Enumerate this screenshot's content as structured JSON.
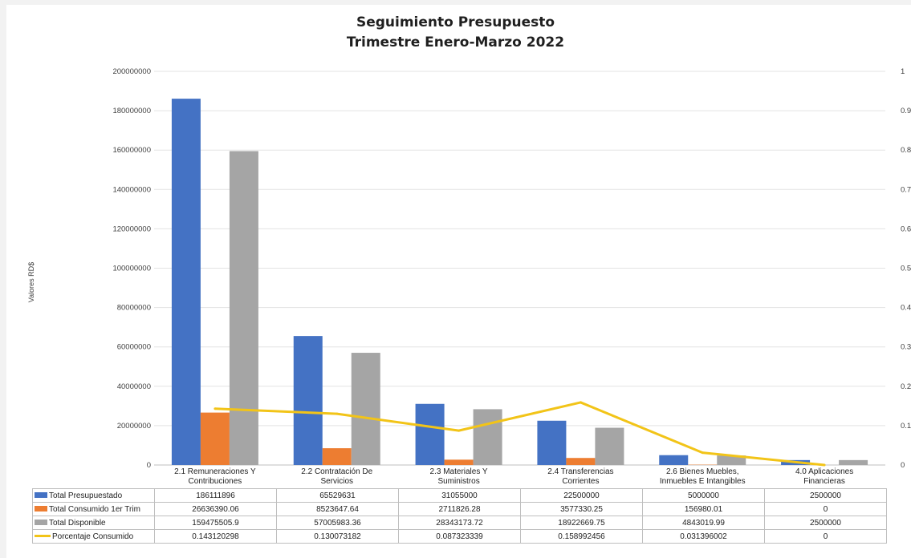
{
  "chart_data": {
    "type": "bar",
    "title": "Seguimiento Presupuesto",
    "subtitle": "Trimestre Enero-Marzo 2022",
    "ylabel": "Valores RD$",
    "ylim": [
      0,
      200000000
    ],
    "y2lim": [
      0,
      1
    ],
    "grid": true,
    "legend_placement": "data-table-left",
    "yticks": [
      "0",
      "20000000",
      "40000000",
      "60000000",
      "80000000",
      "100000000",
      "120000000",
      "140000000",
      "160000000",
      "180000000",
      "200000000"
    ],
    "y2ticks": [
      "0",
      "0.1",
      "0.2",
      "0.3",
      "0.4",
      "0.5",
      "0.6",
      "0.7",
      "0.8",
      "0.9",
      "1"
    ],
    "categories": [
      {
        "line1": "2.1 Remuneraciones Y",
        "line2": "Contribuciones"
      },
      {
        "line1": "2.2 Contratación De",
        "line2": "Servicios"
      },
      {
        "line1": "2.3 Materiales Y",
        "line2": "Suministros"
      },
      {
        "line1": "2.4 Transferencias",
        "line2": "Corrientes"
      },
      {
        "line1": "2.6 Bienes Muebles,",
        "line2": "Inmuebles E Intangibles"
      },
      {
        "line1": "4.0 Aplicaciones",
        "line2": "Financieras"
      }
    ],
    "series": [
      {
        "name": "Total Presupuestado",
        "kind": "bar",
        "color": "#4472c4",
        "values": [
          186111896,
          65529631,
          31055000,
          22500000,
          5000000,
          2500000
        ],
        "labels": [
          "186111896",
          "65529631",
          "31055000",
          "22500000",
          "5000000",
          "2500000"
        ]
      },
      {
        "name": "Total Consumido 1er Trim",
        "kind": "bar",
        "color": "#ed7d31",
        "values": [
          26636390.06,
          8523647.64,
          2711826.28,
          3577330.25,
          156980.01,
          0
        ],
        "labels": [
          "26636390.06",
          "8523647.64",
          "2711826.28",
          "3577330.25",
          "156980.01",
          "0"
        ]
      },
      {
        "name": "Total Disponible",
        "kind": "bar",
        "color": "#a5a5a5",
        "values": [
          159475505.9,
          57005983.36,
          28343173.72,
          18922669.75,
          4843019.99,
          2500000
        ],
        "labels": [
          "159475505.9",
          "57005983.36",
          "28343173.72",
          "18922669.75",
          "4843019.99",
          "2500000"
        ]
      },
      {
        "name": "Porcentaje Consumido",
        "kind": "line",
        "axis": "secondary",
        "color": "#f2c418",
        "values": [
          0.143120298,
          0.130073182,
          0.087323339,
          0.158992456,
          0.031396002,
          0
        ],
        "labels": [
          "0.143120298",
          "0.130073182",
          "0.087323339",
          "0.158992456",
          "0.031396002",
          "0"
        ]
      }
    ]
  }
}
